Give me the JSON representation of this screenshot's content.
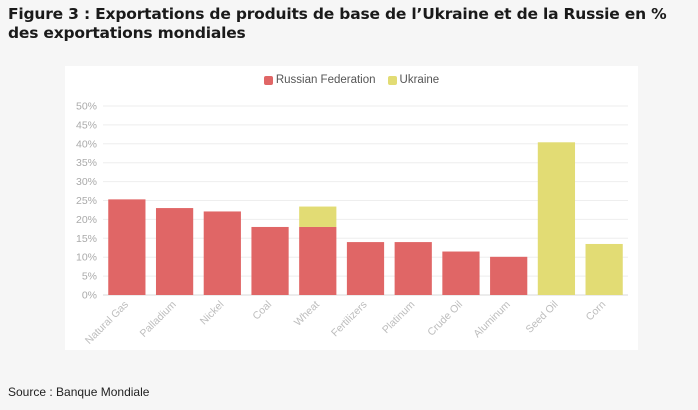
{
  "figure": {
    "title": "Figure 3 : Exportations de produits de base de l’Ukraine et de la Russie en % des exportations mondiales",
    "source": "Source : Banque Mondiale"
  },
  "chart_data": {
    "type": "bar",
    "stacked": true,
    "categories": [
      "Natural Gas",
      "Palladium",
      "Nickel",
      "Coal",
      "Wheat",
      "Fertilizers",
      "Platinum",
      "Crude Oil",
      "Aluminum",
      "Seed Oil",
      "Corn"
    ],
    "series": [
      {
        "name": "Russian Federation",
        "color": "#e06666",
        "values": [
          25.3,
          23,
          22.1,
          18,
          18,
          14,
          14,
          11.5,
          10.1,
          0,
          0
        ]
      },
      {
        "name": "Ukraine",
        "color": "#e2dc74",
        "values": [
          0,
          0,
          0,
          0,
          5.4,
          0,
          0,
          0,
          0,
          40.4,
          13.5
        ]
      }
    ],
    "ylim": [
      0,
      50
    ],
    "yticks": [
      "0%",
      "5%",
      "10%",
      "15%",
      "20%",
      "25%",
      "30%",
      "35%",
      "40%",
      "45%",
      "50%"
    ],
    "grid": true,
    "legend_position": "top-center"
  }
}
